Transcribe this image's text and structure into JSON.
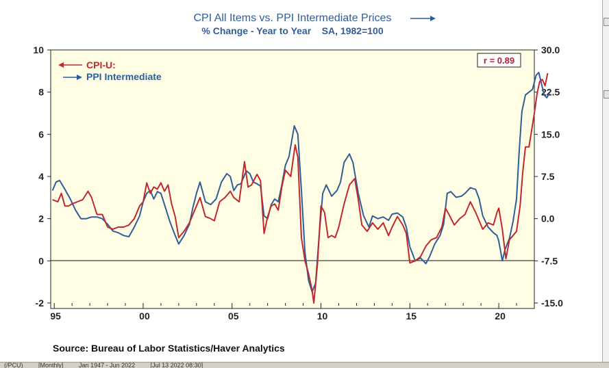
{
  "chart_data": {
    "type": "line",
    "title": "CPI All Items vs. PPI Intermediate Prices",
    "subtitle": "% Change - Year to Year    SA, 1982=100",
    "source": "Source:  Bureau of Labor Statistics/Haver Analytics",
    "correlation_label": "r = 0.89",
    "left_axis": {
      "min": -2,
      "max": 10,
      "ticks": [
        "10",
        "8",
        "6",
        "4",
        "2",
        "0",
        "-2"
      ]
    },
    "right_axis": {
      "min": -15,
      "max": 30,
      "ticks": [
        "30.0",
        "22.5",
        "15.0",
        "7.5",
        "0.0",
        "-7.5",
        "-15.0"
      ]
    },
    "x_axis": {
      "min": 1994.8,
      "max": 2022.0,
      "tick_labels": [
        "95",
        "00",
        "05",
        "10",
        "15",
        "20"
      ]
    },
    "legend": [
      {
        "label": "CPI-U:",
        "color": "#c0282d",
        "axis": "left"
      },
      {
        "label": "PPI Intermediate",
        "color": "#2e5d9a",
        "axis": "right"
      }
    ],
    "series": [
      {
        "name": "CPI-U:",
        "axis": "left",
        "color": "#c0282d",
        "points": [
          [
            1994.9,
            2.9
          ],
          [
            1995.2,
            2.8
          ],
          [
            1995.4,
            3.2
          ],
          [
            1995.6,
            2.6
          ],
          [
            1995.8,
            2.6
          ],
          [
            1996.0,
            2.7
          ],
          [
            1996.3,
            2.8
          ],
          [
            1996.6,
            2.9
          ],
          [
            1996.9,
            3.3
          ],
          [
            1997.1,
            3.0
          ],
          [
            1997.4,
            2.2
          ],
          [
            1997.7,
            2.2
          ],
          [
            1998.0,
            1.6
          ],
          [
            1998.3,
            1.5
          ],
          [
            1998.6,
            1.6
          ],
          [
            1998.9,
            1.6
          ],
          [
            1999.2,
            1.7
          ],
          [
            1999.5,
            2.0
          ],
          [
            1999.8,
            2.6
          ],
          [
            2000.0,
            2.8
          ],
          [
            2000.2,
            3.7
          ],
          [
            2000.4,
            3.2
          ],
          [
            2000.6,
            3.5
          ],
          [
            2000.8,
            3.4
          ],
          [
            2001.0,
            3.7
          ],
          [
            2001.2,
            3.3
          ],
          [
            2001.4,
            3.6
          ],
          [
            2001.6,
            2.7
          ],
          [
            2001.8,
            2.1
          ],
          [
            2002.0,
            1.1
          ],
          [
            2002.3,
            1.4
          ],
          [
            2002.6,
            1.8
          ],
          [
            2002.8,
            2.2
          ],
          [
            2003.0,
            2.6
          ],
          [
            2003.2,
            3.0
          ],
          [
            2003.5,
            2.1
          ],
          [
            2003.8,
            2.0
          ],
          [
            2004.0,
            1.9
          ],
          [
            2004.3,
            2.8
          ],
          [
            2004.6,
            3.0
          ],
          [
            2004.9,
            3.3
          ],
          [
            2005.1,
            3.0
          ],
          [
            2005.4,
            2.8
          ],
          [
            2005.7,
            4.7
          ],
          [
            2005.9,
            3.5
          ],
          [
            2006.1,
            3.6
          ],
          [
            2006.4,
            4.1
          ],
          [
            2006.6,
            3.8
          ],
          [
            2006.8,
            1.3
          ],
          [
            2007.0,
            2.1
          ],
          [
            2007.2,
            2.6
          ],
          [
            2007.4,
            2.7
          ],
          [
            2007.6,
            2.4
          ],
          [
            2007.8,
            3.5
          ],
          [
            2008.0,
            4.3
          ],
          [
            2008.3,
            4.0
          ],
          [
            2008.55,
            5.5
          ],
          [
            2008.7,
            4.9
          ],
          [
            2008.9,
            1.1
          ],
          [
            2009.1,
            0.0
          ],
          [
            2009.3,
            -0.6
          ],
          [
            2009.5,
            -1.4
          ],
          [
            2009.6,
            -2.0
          ],
          [
            2009.8,
            -0.2
          ],
          [
            2010.0,
            2.6
          ],
          [
            2010.2,
            2.3
          ],
          [
            2010.4,
            1.1
          ],
          [
            2010.6,
            1.2
          ],
          [
            2010.8,
            1.1
          ],
          [
            2011.0,
            1.6
          ],
          [
            2011.3,
            2.7
          ],
          [
            2011.6,
            3.6
          ],
          [
            2011.9,
            3.9
          ],
          [
            2012.1,
            2.9
          ],
          [
            2012.3,
            1.7
          ],
          [
            2012.6,
            1.4
          ],
          [
            2012.9,
            1.8
          ],
          [
            2013.2,
            1.5
          ],
          [
            2013.5,
            1.8
          ],
          [
            2013.8,
            1.2
          ],
          [
            2014.0,
            1.6
          ],
          [
            2014.3,
            2.1
          ],
          [
            2014.6,
            1.7
          ],
          [
            2014.8,
            1.3
          ],
          [
            2015.0,
            -0.1
          ],
          [
            2015.3,
            0.0
          ],
          [
            2015.6,
            0.2
          ],
          [
            2015.9,
            0.7
          ],
          [
            2016.2,
            1.0
          ],
          [
            2016.5,
            1.1
          ],
          [
            2016.8,
            1.6
          ],
          [
            2017.0,
            2.5
          ],
          [
            2017.2,
            2.2
          ],
          [
            2017.5,
            1.7
          ],
          [
            2017.8,
            2.0
          ],
          [
            2018.1,
            2.2
          ],
          [
            2018.4,
            2.8
          ],
          [
            2018.7,
            2.3
          ],
          [
            2018.9,
            1.9
          ],
          [
            2019.1,
            1.5
          ],
          [
            2019.4,
            1.8
          ],
          [
            2019.7,
            1.7
          ],
          [
            2019.9,
            2.3
          ],
          [
            2020.0,
            2.5
          ],
          [
            2020.2,
            1.5
          ],
          [
            2020.4,
            0.1
          ],
          [
            2020.6,
            1.0
          ],
          [
            2020.8,
            1.2
          ],
          [
            2021.0,
            1.4
          ],
          [
            2021.2,
            2.6
          ],
          [
            2021.35,
            4.2
          ],
          [
            2021.5,
            5.4
          ],
          [
            2021.7,
            5.4
          ],
          [
            2021.85,
            6.2
          ],
          [
            2022.0,
            7.0
          ],
          [
            2022.15,
            7.9
          ],
          [
            2022.3,
            8.5
          ],
          [
            2022.45,
            8.6
          ],
          [
            2022.6,
            8.3
          ],
          [
            2022.75,
            8.9
          ]
        ]
      },
      {
        "name": "PPI Intermediate",
        "axis": "right",
        "color": "#2e5d9a",
        "points": [
          [
            1994.9,
            5.0
          ],
          [
            1995.1,
            6.5
          ],
          [
            1995.3,
            6.8
          ],
          [
            1995.6,
            5.2
          ],
          [
            1995.9,
            3.5
          ],
          [
            1996.2,
            1.5
          ],
          [
            1996.5,
            0.0
          ],
          [
            1996.8,
            0.0
          ],
          [
            1997.1,
            0.3
          ],
          [
            1997.4,
            0.3
          ],
          [
            1997.7,
            0.0
          ],
          [
            1998.0,
            -1.0
          ],
          [
            1998.3,
            -2.2
          ],
          [
            1998.6,
            -2.5
          ],
          [
            1998.9,
            -3.0
          ],
          [
            1999.2,
            -3.2
          ],
          [
            1999.5,
            -1.5
          ],
          [
            1999.8,
            0.5
          ],
          [
            2000.0,
            3.0
          ],
          [
            2000.2,
            4.5
          ],
          [
            2000.4,
            5.0
          ],
          [
            2000.6,
            3.5
          ],
          [
            2000.8,
            4.8
          ],
          [
            2001.0,
            4.5
          ],
          [
            2001.2,
            2.5
          ],
          [
            2001.5,
            -0.5
          ],
          [
            2001.8,
            -3.0
          ],
          [
            2002.0,
            -4.5
          ],
          [
            2002.3,
            -3.0
          ],
          [
            2002.6,
            -1.0
          ],
          [
            2002.8,
            2.0
          ],
          [
            2003.0,
            4.5
          ],
          [
            2003.2,
            6.5
          ],
          [
            2003.5,
            3.0
          ],
          [
            2003.8,
            2.5
          ],
          [
            2004.1,
            3.5
          ],
          [
            2004.4,
            6.5
          ],
          [
            2004.7,
            8.0
          ],
          [
            2004.9,
            7.5
          ],
          [
            2005.1,
            5.0
          ],
          [
            2005.3,
            6.0
          ],
          [
            2005.5,
            6.2
          ],
          [
            2005.8,
            8.5
          ],
          [
            2006.0,
            8.0
          ],
          [
            2006.2,
            6.5
          ],
          [
            2006.4,
            6.2
          ],
          [
            2006.6,
            5.8
          ],
          [
            2006.8,
            0.5
          ],
          [
            2007.0,
            0.0
          ],
          [
            2007.2,
            2.5
          ],
          [
            2007.4,
            3.5
          ],
          [
            2007.6,
            3.0
          ],
          [
            2007.8,
            6.0
          ],
          [
            2008.0,
            9.5
          ],
          [
            2008.2,
            11.0
          ],
          [
            2008.5,
            16.5
          ],
          [
            2008.7,
            15.0
          ],
          [
            2008.9,
            5.0
          ],
          [
            2009.1,
            -6.0
          ],
          [
            2009.3,
            -11.0
          ],
          [
            2009.5,
            -13.0
          ],
          [
            2009.7,
            -11.5
          ],
          [
            2009.9,
            -3.0
          ],
          [
            2010.1,
            4.5
          ],
          [
            2010.3,
            6.0
          ],
          [
            2010.6,
            4.0
          ],
          [
            2010.9,
            5.0
          ],
          [
            2011.1,
            6.5
          ],
          [
            2011.3,
            10.0
          ],
          [
            2011.6,
            11.5
          ],
          [
            2011.8,
            10.0
          ],
          [
            2012.1,
            4.5
          ],
          [
            2012.4,
            0.5
          ],
          [
            2012.7,
            -1.5
          ],
          [
            2012.9,
            0.5
          ],
          [
            2013.2,
            0.0
          ],
          [
            2013.5,
            0.3
          ],
          [
            2013.8,
            -0.3
          ],
          [
            2014.0,
            0.8
          ],
          [
            2014.3,
            1.0
          ],
          [
            2014.6,
            0.3
          ],
          [
            2014.8,
            -1.5
          ],
          [
            2015.0,
            -5.0
          ],
          [
            2015.3,
            -7.5
          ],
          [
            2015.6,
            -7.0
          ],
          [
            2015.9,
            -8.0
          ],
          [
            2016.1,
            -6.8
          ],
          [
            2016.4,
            -4.5
          ],
          [
            2016.7,
            -3.0
          ],
          [
            2016.9,
            -1.0
          ],
          [
            2017.1,
            4.5
          ],
          [
            2017.3,
            4.8
          ],
          [
            2017.6,
            3.8
          ],
          [
            2017.9,
            4.0
          ],
          [
            2018.1,
            4.5
          ],
          [
            2018.4,
            5.5
          ],
          [
            2018.7,
            5.2
          ],
          [
            2018.9,
            3.5
          ],
          [
            2019.1,
            0.5
          ],
          [
            2019.4,
            -1.5
          ],
          [
            2019.7,
            -2.5
          ],
          [
            2019.9,
            -3.0
          ],
          [
            2020.0,
            -4.0
          ],
          [
            2020.2,
            -7.5
          ],
          [
            2020.35,
            -5.5
          ],
          [
            2020.6,
            -3.5
          ],
          [
            2020.8,
            -0.5
          ],
          [
            2021.0,
            3.5
          ],
          [
            2021.15,
            12.0
          ],
          [
            2021.3,
            19.0
          ],
          [
            2021.5,
            22.0
          ],
          [
            2021.7,
            22.5
          ],
          [
            2021.9,
            23.0
          ],
          [
            2022.1,
            25.5
          ],
          [
            2022.25,
            26.0
          ],
          [
            2022.4,
            24.0
          ],
          [
            2022.55,
            22.0
          ],
          [
            2022.7,
            21.5
          ],
          [
            2022.85,
            22.3
          ]
        ]
      }
    ]
  },
  "statusbar": {
    "items": [
      "(/PCU)",
      "[Monthly]",
      "Jan 1947 - Jun 2022",
      "[Jul 13 2022 08:30]"
    ]
  }
}
